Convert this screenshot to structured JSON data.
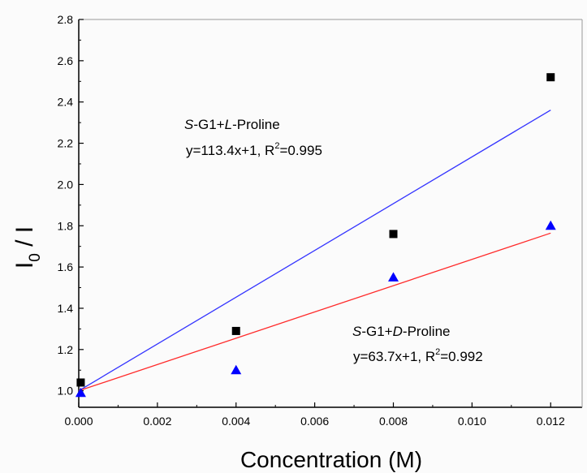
{
  "chart_data": {
    "type": "scatter",
    "xlabel": "Concentration (M)",
    "ylabel": {
      "main": "I",
      "sub": "0",
      "rest": " / I"
    },
    "xlim": [
      0,
      0.0128
    ],
    "ylim": [
      0.92,
      2.8
    ],
    "x_ticks": [
      "0.000",
      "0.002",
      "0.004",
      "0.006",
      "0.008",
      "0.010",
      "0.012"
    ],
    "y_ticks": [
      "1.0",
      "1.2",
      "1.4",
      "1.6",
      "1.8",
      "2.0",
      "2.2",
      "2.4",
      "2.6",
      "2.8"
    ],
    "grid": false,
    "series": [
      {
        "marker": "square",
        "color": "#000000",
        "x": [
          5e-05,
          0.004,
          0.008,
          0.012
        ],
        "y": [
          1.04,
          1.29,
          1.76,
          2.52
        ],
        "fit": {
          "slope": 113.4,
          "intercept": 1,
          "x_range": [
            0,
            0.012
          ],
          "color": "#3333ff"
        }
      },
      {
        "marker": "triangle",
        "color": "#0000ff",
        "x": [
          5e-05,
          0.004,
          0.008,
          0.012
        ],
        "y": [
          0.99,
          1.1,
          1.55,
          1.8
        ],
        "fit": {
          "slope": 63.7,
          "intercept": 1,
          "x_range": [
            0,
            0.012
          ],
          "color": "#ff2a2a"
        }
      }
    ],
    "annotations": [
      {
        "line1": {
          "italic": "S",
          "a": "-G1+",
          "italic2": "L",
          "b": "-Proline"
        },
        "line2": {
          "eq": "y=113.4x+1, R",
          "sup": "2",
          "val": "=0.995"
        }
      },
      {
        "line1": {
          "italic": "S",
          "a": "-G1+",
          "italic2": "D",
          "b": "-Proline"
        },
        "line2": {
          "eq": "y=63.7x+1, R",
          "sup": "2",
          "val": "=0.992"
        }
      }
    ]
  }
}
